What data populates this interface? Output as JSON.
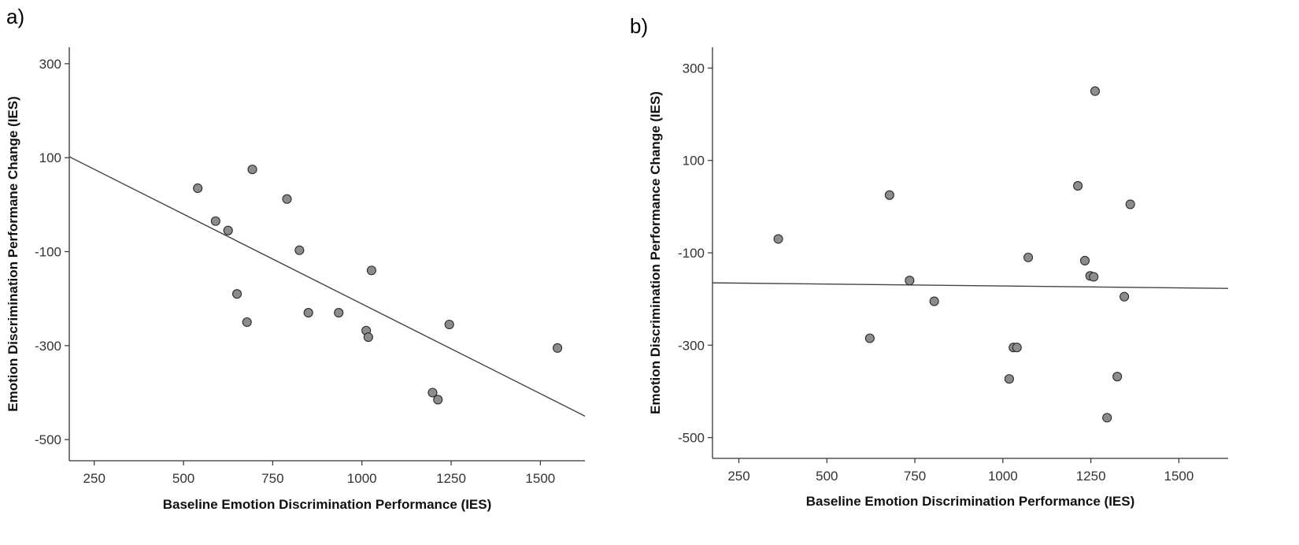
{
  "panels": [
    "a)",
    "b)"
  ],
  "chart_data": [
    {
      "type": "scatter",
      "panel": "a)",
      "xlabel": "Baseline Emotion Discrimination Performance (IES)",
      "ylabel": "Emotion Discrimination Performane Change (IES)",
      "xlim": [
        180,
        1625
      ],
      "ylim": [
        -545,
        335
      ],
      "xticks": [
        250,
        500,
        750,
        1000,
        1250,
        1500
      ],
      "yticks": [
        300,
        100,
        -100,
        -300,
        -500
      ],
      "grid": false,
      "points": [
        {
          "x": 540,
          "y": 35
        },
        {
          "x": 590,
          "y": -35
        },
        {
          "x": 625,
          "y": -55
        },
        {
          "x": 650,
          "y": -190
        },
        {
          "x": 678,
          "y": -250
        },
        {
          "x": 693,
          "y": 75
        },
        {
          "x": 790,
          "y": 12
        },
        {
          "x": 825,
          "y": -97
        },
        {
          "x": 850,
          "y": -230
        },
        {
          "x": 935,
          "y": -230
        },
        {
          "x": 1012,
          "y": -268
        },
        {
          "x": 1018,
          "y": -282
        },
        {
          "x": 1027,
          "y": -140
        },
        {
          "x": 1198,
          "y": -400
        },
        {
          "x": 1213,
          "y": -415
        },
        {
          "x": 1245,
          "y": -255
        },
        {
          "x": 1548,
          "y": -305
        }
      ],
      "fit_line": {
        "x": [
          180,
          1625
        ],
        "y": [
          102,
          -450
        ]
      }
    },
    {
      "type": "scatter",
      "panel": "b)",
      "xlabel": "Baseline Emotion Discrimination Performance (IES)",
      "ylabel": "Emotion Discrimination Performance Change (IES)",
      "xlim": [
        175,
        1640
      ],
      "ylim": [
        -545,
        345
      ],
      "xticks": [
        250,
        500,
        750,
        1000,
        1250,
        1500
      ],
      "yticks": [
        300,
        100,
        -100,
        -300,
        -500
      ],
      "grid": false,
      "points": [
        {
          "x": 362,
          "y": -70
        },
        {
          "x": 622,
          "y": -285
        },
        {
          "x": 678,
          "y": 25
        },
        {
          "x": 735,
          "y": -160
        },
        {
          "x": 805,
          "y": -205
        },
        {
          "x": 1018,
          "y": -373
        },
        {
          "x": 1030,
          "y": -305
        },
        {
          "x": 1040,
          "y": -305
        },
        {
          "x": 1072,
          "y": -110
        },
        {
          "x": 1213,
          "y": 45
        },
        {
          "x": 1233,
          "y": -117
        },
        {
          "x": 1248,
          "y": -150
        },
        {
          "x": 1258,
          "y": -152
        },
        {
          "x": 1262,
          "y": 250
        },
        {
          "x": 1296,
          "y": -457
        },
        {
          "x": 1325,
          "y": -368
        },
        {
          "x": 1345,
          "y": -195
        },
        {
          "x": 1362,
          "y": 5
        }
      ],
      "fit_line": {
        "x": [
          175,
          1640
        ],
        "y": [
          -165,
          -177
        ]
      }
    }
  ]
}
